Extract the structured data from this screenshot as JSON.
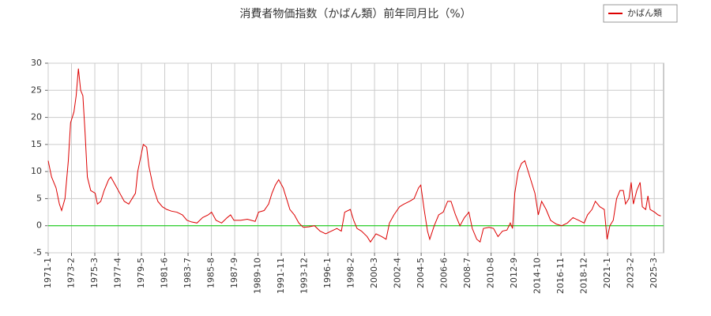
{
  "chart_data": {
    "type": "line",
    "title": "消費者物価指数（かばん類）前年同月比（%）",
    "x": [
      1971.0,
      1971.3,
      1971.7,
      1972.0,
      1972.2,
      1972.5,
      1972.8,
      1973.0,
      1973.3,
      1973.5,
      1973.7,
      1973.9,
      1974.1,
      1974.3,
      1974.5,
      1974.8,
      1975.2,
      1975.4,
      1975.7,
      1976.0,
      1976.4,
      1976.6,
      1977.0,
      1977.4,
      1977.8,
      1978.2,
      1978.5,
      1978.8,
      1979.0,
      1979.3,
      1979.5,
      1979.8,
      1980.0,
      1980.4,
      1980.8,
      1981.2,
      1981.6,
      1982.0,
      1982.5,
      1983.0,
      1983.4,
      1983.8,
      1984.3,
      1984.8,
      1985.3,
      1985.6,
      1986.0,
      1986.5,
      1987.0,
      1987.3,
      1987.6,
      1988.2,
      1988.8,
      1989.5,
      1989.8,
      1990.3,
      1990.7,
      1991.0,
      1991.3,
      1991.6,
      1992.0,
      1992.3,
      1992.6,
      1993.0,
      1993.4,
      1993.8,
      1994.3,
      1994.8,
      1995.3,
      1995.8,
      1996.3,
      1996.8,
      1997.2,
      1997.5,
      1998.0,
      1998.3,
      1998.6,
      1999.0,
      1999.5,
      1999.8,
      2000.3,
      2000.8,
      2001.2,
      2001.5,
      2001.9,
      2002.4,
      2002.8,
      2003.3,
      2003.7,
      2004.1,
      2004.3,
      2004.6,
      2004.9,
      2005.1,
      2005.5,
      2005.9,
      2006.3,
      2006.7,
      2007.0,
      2007.4,
      2007.8,
      2008.2,
      2008.6,
      2008.9,
      2009.3,
      2009.6,
      2009.9,
      2010.4,
      2010.8,
      2011.2,
      2011.6,
      2012.0,
      2012.3,
      2012.5,
      2012.7,
      2013.0,
      2013.3,
      2013.6,
      2013.9,
      2014.2,
      2014.5,
      2014.8,
      2015.1,
      2015.5,
      2015.9,
      2016.4,
      2016.9,
      2017.4,
      2017.9,
      2018.4,
      2018.9,
      2019.2,
      2019.6,
      2019.9,
      2020.3,
      2020.7,
      2020.95,
      2021.2,
      2021.5,
      2021.8,
      2022.1,
      2022.4,
      2022.6,
      2022.9,
      2023.1,
      2023.3,
      2023.6,
      2023.9,
      2024.1,
      2024.4,
      2024.6,
      2024.8,
      2025.2,
      2025.5,
      2025.75
    ],
    "series": [
      {
        "name": "かばん類",
        "color": "#dd0000",
        "values": [
          12,
          9,
          7,
          4,
          2.8,
          5,
          12,
          19,
          21,
          24,
          29,
          25,
          24,
          17,
          9,
          6.5,
          6,
          4,
          4.5,
          6.5,
          8.5,
          9,
          7.5,
          6,
          4.5,
          4,
          5,
          6,
          10,
          13,
          15,
          14.5,
          11,
          7,
          4.5,
          3.5,
          3,
          2.7,
          2.5,
          2,
          1,
          0.7,
          0.5,
          1.5,
          2,
          2.5,
          1,
          0.5,
          1.5,
          2,
          1,
          1,
          1.2,
          0.8,
          2.5,
          2.8,
          4,
          6,
          7.5,
          8.5,
          7,
          5,
          3,
          2,
          0.5,
          -0.3,
          -0.2,
          0,
          -1,
          -1.5,
          -1,
          -0.5,
          -1,
          2.5,
          3,
          1,
          -0.5,
          -1,
          -2,
          -3,
          -1.5,
          -2,
          -2.5,
          0.5,
          2,
          3.5,
          4,
          4.5,
          5,
          7,
          7.5,
          3,
          -1,
          -2.5,
          0,
          2,
          2.5,
          4.5,
          4.5,
          2,
          0,
          1.5,
          2.5,
          -0.5,
          -2.5,
          -3,
          -0.5,
          -0.3,
          -0.5,
          -2,
          -1,
          -0.8,
          0.5,
          -0.5,
          6,
          10,
          11.5,
          12,
          10,
          8,
          6,
          2,
          4.5,
          3,
          1,
          0.3,
          0,
          0.5,
          1.5,
          1,
          0.5,
          2,
          3,
          4.5,
          3.5,
          3,
          -2.5,
          0,
          1,
          5,
          6.5,
          6.5,
          4,
          5,
          8,
          4,
          6.5,
          8,
          3.5,
          3,
          5.5,
          3,
          2.5,
          2,
          1.8
        ]
      }
    ],
    "xlim": [
      1971.0,
      2026.0
    ],
    "xticks": [
      {
        "value": 1971.0,
        "label": "1971-1"
      },
      {
        "value": 1973.0833,
        "label": "1973-2"
      },
      {
        "value": 1975.1667,
        "label": "1975-3"
      },
      {
        "value": 1977.25,
        "label": "1977-4"
      },
      {
        "value": 1979.3333,
        "label": "1979-5"
      },
      {
        "value": 1981.4167,
        "label": "1981-6"
      },
      {
        "value": 1983.5,
        "label": "1983-7"
      },
      {
        "value": 1985.5833,
        "label": "1985-8"
      },
      {
        "value": 1987.6667,
        "label": "1987-9"
      },
      {
        "value": 1989.75,
        "label": "1989-10"
      },
      {
        "value": 1991.8333,
        "label": "1991-11"
      },
      {
        "value": 1993.9167,
        "label": "1993-12"
      },
      {
        "value": 1996.0,
        "label": "1996-1"
      },
      {
        "value": 1998.0833,
        "label": "1998-2"
      },
      {
        "value": 2000.1667,
        "label": "2000-3"
      },
      {
        "value": 2002.25,
        "label": "2002-4"
      },
      {
        "value": 2004.3333,
        "label": "2004-5"
      },
      {
        "value": 2006.4167,
        "label": "2006-6"
      },
      {
        "value": 2008.5,
        "label": "2008-7"
      },
      {
        "value": 2010.5833,
        "label": "2010-8"
      },
      {
        "value": 2012.6667,
        "label": "2012-9"
      },
      {
        "value": 2014.75,
        "label": "2014-10"
      },
      {
        "value": 2016.8333,
        "label": "2016-11"
      },
      {
        "value": 2018.9167,
        "label": "2018-12"
      },
      {
        "value": 2021.0,
        "label": "2021-1"
      },
      {
        "value": 2023.0833,
        "label": "2023-2"
      },
      {
        "value": 2025.1667,
        "label": "2025-3"
      }
    ],
    "ylim": [
      -5,
      30
    ],
    "yticks": [
      -5,
      0,
      5,
      10,
      15,
      20,
      25,
      30
    ],
    "grid": true,
    "zero_line_color": "#00cc00",
    "legend": "upper right"
  }
}
